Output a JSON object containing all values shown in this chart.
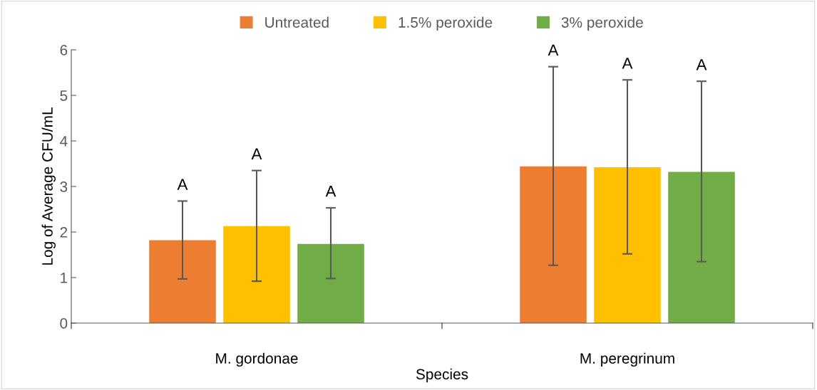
{
  "chart_data": {
    "type": "bar",
    "xlabel": "Species",
    "ylabel": "Log of Average CFU/mL",
    "categories": [
      "M. gordonae",
      "M. peregrinum"
    ],
    "series": [
      {
        "name": "Untreated",
        "color": "#ed7d31",
        "values": [
          1.82,
          3.44
        ],
        "errors": [
          [
            0.97,
            2.68
          ],
          [
            1.27,
            5.63
          ]
        ]
      },
      {
        "name": "1.5% peroxide",
        "color": "#ffc000",
        "values": [
          2.13,
          3.42
        ],
        "errors": [
          [
            0.92,
            3.35
          ],
          [
            1.52,
            5.34
          ]
        ]
      },
      {
        "name": "3% peroxide",
        "color": "#70ad47",
        "values": [
          1.74,
          3.32
        ],
        "errors": [
          [
            0.98,
            2.53
          ],
          [
            1.35,
            5.31
          ]
        ]
      }
    ],
    "annotations": [
      "A",
      "A",
      "A",
      "A",
      "A",
      "A"
    ],
    "ylim": [
      0,
      6
    ],
    "yticks": [
      0,
      1,
      2,
      3,
      4,
      5,
      6
    ],
    "grid": false,
    "legend": "top"
  }
}
